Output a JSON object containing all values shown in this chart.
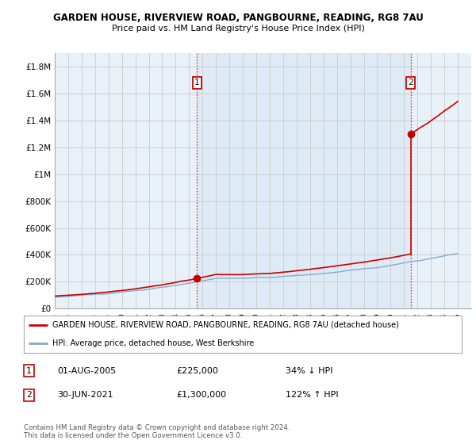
{
  "title": "GARDEN HOUSE, RIVERVIEW ROAD, PANGBOURNE, READING, RG8 7AU",
  "subtitle": "Price paid vs. HM Land Registry's House Price Index (HPI)",
  "ylim": [
    0,
    1900000
  ],
  "yticks": [
    0,
    200000,
    400000,
    600000,
    800000,
    1000000,
    1200000,
    1400000,
    1600000,
    1800000
  ],
  "ytick_labels": [
    "£0",
    "£200K",
    "£400K",
    "£600K",
    "£800K",
    "£1M",
    "£1.2M",
    "£1.4M",
    "£1.6M",
    "£1.8M"
  ],
  "sale1_date": 2005.583,
  "sale1_price": 225000,
  "sale2_date": 2021.497,
  "sale2_price": 1300000,
  "line_color_property": "#cc0000",
  "line_color_hpi": "#88aacc",
  "shade_color": "#ddeeff",
  "legend_property": "GARDEN HOUSE, RIVERVIEW ROAD, PANGBOURNE, READING, RG8 7AU (detached house)",
  "legend_hpi": "HPI: Average price, detached house, West Berkshire",
  "table_row1_num": "1",
  "table_row1_date": "01-AUG-2005",
  "table_row1_price": "£225,000",
  "table_row1_hpi": "34% ↓ HPI",
  "table_row2_num": "2",
  "table_row2_date": "30-JUN-2021",
  "table_row2_price": "£1,300,000",
  "table_row2_hpi": "122% ↑ HPI",
  "footer": "Contains HM Land Registry data © Crown copyright and database right 2024.\nThis data is licensed under the Open Government Licence v3.0.",
  "bg_color": "#ffffff",
  "grid_color": "#cccccc",
  "xmin": 1995,
  "xmax": 2026
}
